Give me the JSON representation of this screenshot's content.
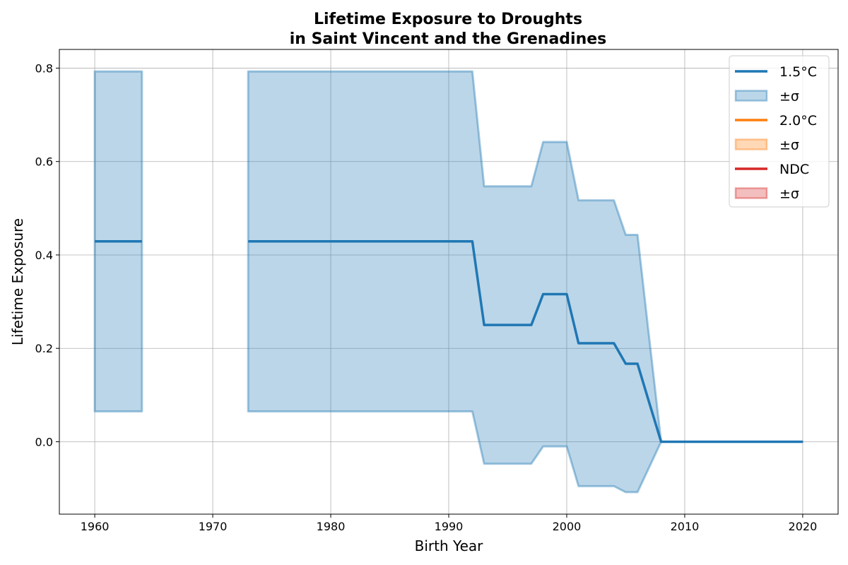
{
  "chart_data": {
    "type": "line",
    "title_line1": "Lifetime Exposure to Droughts",
    "title_line2": "in Saint Vincent and the Grenadines",
    "xlabel": "Birth Year",
    "ylabel": "Lifetime Exposure",
    "xlim": [
      1957,
      2023
    ],
    "ylim": [
      -0.155,
      0.84
    ],
    "xticks": [
      1960,
      1970,
      1980,
      1990,
      2000,
      2010,
      2020
    ],
    "yticks": [
      0.0,
      0.2,
      0.4,
      0.6,
      0.8
    ],
    "ytick_labels": [
      "0.0",
      "0.2",
      "0.4",
      "0.6",
      "0.8"
    ],
    "grid": true,
    "legend_position": "top-right",
    "legend": [
      {
        "label": "1.5°C",
        "kind": "line",
        "color": "#1f77b4"
      },
      {
        "label": "±σ",
        "kind": "patch",
        "color": "#1f77b4"
      },
      {
        "label": "2.0°C",
        "kind": "line",
        "color": "#ff7f0e"
      },
      {
        "label": "±σ",
        "kind": "patch",
        "color": "#ff7f0e"
      },
      {
        "label": "NDC",
        "kind": "line",
        "color": "#d62728"
      },
      {
        "label": "±σ",
        "kind": "patch",
        "color": "#d62728"
      }
    ],
    "series": [
      {
        "name": "1.5°C",
        "color": "#1f77b4",
        "segments": [
          {
            "x": [
              1960,
              1961,
              1962,
              1963,
              1964
            ],
            "mean": [
              0.429,
              0.429,
              0.429,
              0.429,
              0.429
            ],
            "lower": [
              0.065,
              0.065,
              0.065,
              0.065,
              0.065
            ],
            "upper": [
              0.793,
              0.793,
              0.793,
              0.793,
              0.793
            ]
          },
          {
            "x": [
              1973,
              1974,
              1975,
              1976,
              1977,
              1978,
              1979,
              1980,
              1981,
              1982,
              1983,
              1984,
              1985,
              1986,
              1987,
              1988,
              1989,
              1990,
              1991,
              1992,
              1993,
              1994,
              1995,
              1996,
              1997,
              1998,
              1999,
              2000,
              2001,
              2002,
              2003,
              2004,
              2005,
              2006,
              2007,
              2008,
              2009,
              2010,
              2011,
              2012,
              2013,
              2014,
              2015,
              2016,
              2017,
              2018,
              2019,
              2020
            ],
            "mean": [
              0.429,
              0.429,
              0.429,
              0.429,
              0.429,
              0.429,
              0.429,
              0.429,
              0.429,
              0.429,
              0.429,
              0.429,
              0.429,
              0.429,
              0.429,
              0.429,
              0.429,
              0.429,
              0.429,
              0.429,
              0.25,
              0.25,
              0.25,
              0.25,
              0.25,
              0.316,
              0.316,
              0.316,
              0.211,
              0.211,
              0.211,
              0.211,
              0.167,
              0.167,
              0.083,
              0.0,
              0.0,
              0.0,
              0.0,
              0.0,
              0.0,
              0.0,
              0.0,
              0.0,
              0.0,
              0.0,
              0.0,
              0.0
            ],
            "lower": [
              0.065,
              0.065,
              0.065,
              0.065,
              0.065,
              0.065,
              0.065,
              0.065,
              0.065,
              0.065,
              0.065,
              0.065,
              0.065,
              0.065,
              0.065,
              0.065,
              0.065,
              0.065,
              0.065,
              0.065,
              -0.047,
              -0.047,
              -0.047,
              -0.047,
              -0.047,
              -0.01,
              -0.01,
              -0.01,
              -0.095,
              -0.095,
              -0.095,
              -0.095,
              -0.108,
              -0.108,
              -0.054,
              0.0,
              0.0,
              0.0,
              0.0,
              0.0,
              0.0,
              0.0,
              0.0,
              0.0,
              0.0,
              0.0,
              0.0,
              0.0
            ],
            "upper": [
              0.793,
              0.793,
              0.793,
              0.793,
              0.793,
              0.793,
              0.793,
              0.793,
              0.793,
              0.793,
              0.793,
              0.793,
              0.793,
              0.793,
              0.793,
              0.793,
              0.793,
              0.793,
              0.793,
              0.793,
              0.547,
              0.547,
              0.547,
              0.547,
              0.547,
              0.642,
              0.642,
              0.642,
              0.517,
              0.517,
              0.517,
              0.517,
              0.443,
              0.443,
              0.22,
              0.0,
              0.0,
              0.0,
              0.0,
              0.0,
              0.0,
              0.0,
              0.0,
              0.0,
              0.0,
              0.0,
              0.0,
              0.0
            ]
          }
        ]
      }
    ]
  }
}
